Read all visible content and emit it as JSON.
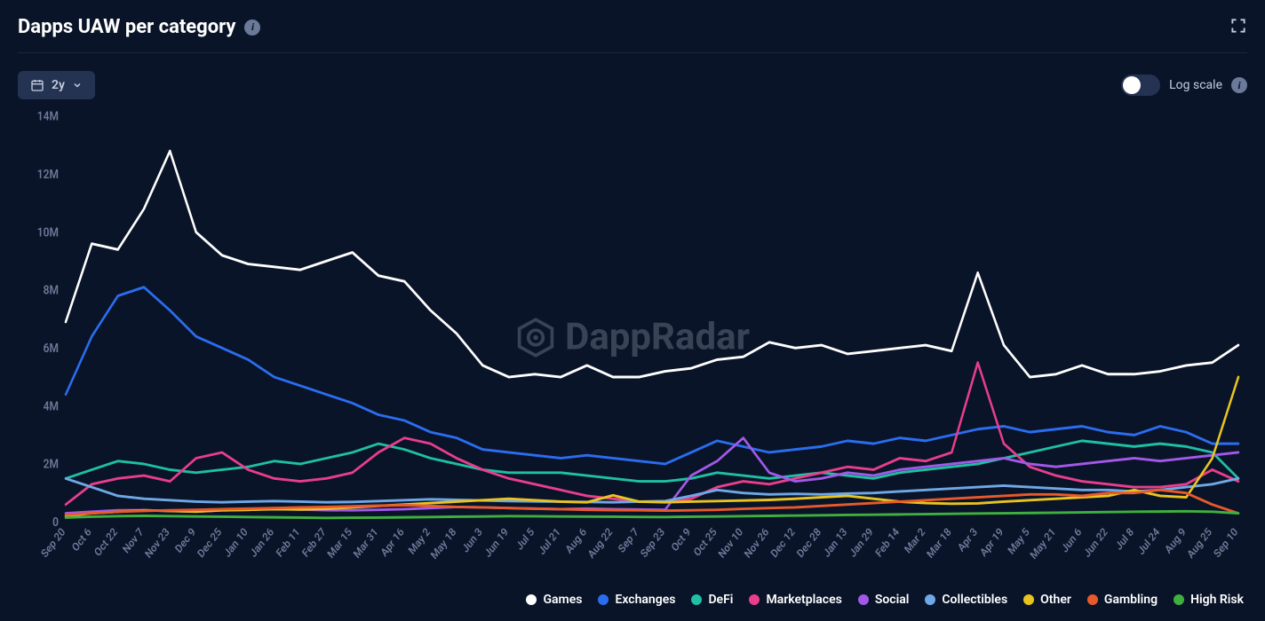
{
  "header": {
    "title": "Dapps UAW per category"
  },
  "controls": {
    "range_label": "2y",
    "scale_label": "Log scale"
  },
  "watermark": "DappRadar",
  "chart": {
    "type": "line",
    "background_color": "#0a1428",
    "axis_text_color": "#6b7a99",
    "line_width": 2.5,
    "y": {
      "min": 0,
      "max": 14000000,
      "ticks": [
        0,
        2000000,
        4000000,
        6000000,
        8000000,
        10000000,
        12000000,
        14000000
      ],
      "tick_labels": [
        "0",
        "2M",
        "4M",
        "6M",
        "8M",
        "10M",
        "12M",
        "14M"
      ]
    },
    "x": {
      "labels": [
        "Sep 20",
        "Oct 6",
        "Oct 22",
        "Nov 7",
        "Nov 23",
        "Dec 9",
        "Dec 25",
        "Jan 10",
        "Jan 26",
        "Feb 11",
        "Feb 27",
        "Mar 15",
        "Mar 31",
        "Apr 16",
        "May 2",
        "May 18",
        "Jun 3",
        "Jun 19",
        "Jul 5",
        "Jul 21",
        "Aug 6",
        "Aug 22",
        "Sep 7",
        "Sep 23",
        "Oct 9",
        "Oct 25",
        "Nov 10",
        "Nov 26",
        "Dec 12",
        "Dec 28",
        "Jan 13",
        "Jan 29",
        "Feb 14",
        "Mar 2",
        "Mar 18",
        "Apr 3",
        "Apr 19",
        "May 5",
        "May 21",
        "Jun 6",
        "Jun 22",
        "Jul 8",
        "Jul 24",
        "Aug 9",
        "Aug 25",
        "Sep 10"
      ]
    },
    "series": [
      {
        "name": "Games",
        "color": "#ffffff",
        "values": [
          6900000,
          9600000,
          9400000,
          10800000,
          12800000,
          10000000,
          9200000,
          8900000,
          8800000,
          8700000,
          9000000,
          9300000,
          8500000,
          8300000,
          7300000,
          6500000,
          5400000,
          5000000,
          5100000,
          5000000,
          5400000,
          5000000,
          5000000,
          5200000,
          5300000,
          5600000,
          5700000,
          6200000,
          6000000,
          6100000,
          5800000,
          5900000,
          6000000,
          6100000,
          5900000,
          8600000,
          6100000,
          5000000,
          5100000,
          5400000,
          5100000,
          5100000,
          5200000,
          5400000,
          5500000,
          6100000
        ]
      },
      {
        "name": "Exchanges",
        "color": "#2b6df0",
        "values": [
          4400000,
          6400000,
          7800000,
          8100000,
          7300000,
          6400000,
          6000000,
          5600000,
          5000000,
          4700000,
          4400000,
          4100000,
          3700000,
          3500000,
          3100000,
          2900000,
          2500000,
          2400000,
          2300000,
          2200000,
          2300000,
          2200000,
          2100000,
          2000000,
          2400000,
          2800000,
          2600000,
          2400000,
          2500000,
          2600000,
          2800000,
          2700000,
          2900000,
          2800000,
          3000000,
          3200000,
          3300000,
          3100000,
          3200000,
          3300000,
          3100000,
          3000000,
          3300000,
          3100000,
          2700000,
          2700000
        ]
      },
      {
        "name": "DeFi",
        "color": "#1fbfa4",
        "values": [
          1500000,
          1800000,
          2100000,
          2000000,
          1800000,
          1700000,
          1800000,
          1900000,
          2100000,
          2000000,
          2200000,
          2400000,
          2700000,
          2500000,
          2200000,
          2000000,
          1800000,
          1700000,
          1700000,
          1700000,
          1600000,
          1500000,
          1400000,
          1400000,
          1500000,
          1700000,
          1600000,
          1500000,
          1600000,
          1700000,
          1600000,
          1500000,
          1700000,
          1800000,
          1900000,
          2000000,
          2200000,
          2400000,
          2600000,
          2800000,
          2700000,
          2600000,
          2700000,
          2600000,
          2400000,
          1500000
        ]
      },
      {
        "name": "Marketplaces",
        "color": "#e83e8c",
        "values": [
          600000,
          1300000,
          1500000,
          1600000,
          1400000,
          2200000,
          2400000,
          1800000,
          1500000,
          1400000,
          1500000,
          1700000,
          2400000,
          2900000,
          2700000,
          2200000,
          1800000,
          1500000,
          1300000,
          1100000,
          900000,
          800000,
          700000,
          700000,
          800000,
          1200000,
          1400000,
          1300000,
          1500000,
          1700000,
          1900000,
          1800000,
          2200000,
          2100000,
          2400000,
          5500000,
          2700000,
          1900000,
          1600000,
          1400000,
          1300000,
          1200000,
          1200000,
          1300000,
          1800000,
          1400000
        ]
      },
      {
        "name": "Social",
        "color": "#a259e8",
        "values": [
          300000,
          350000,
          400000,
          400000,
          380000,
          360000,
          400000,
          420000,
          450000,
          430000,
          410000,
          400000,
          420000,
          440000,
          480000,
          520000,
          500000,
          480000,
          460000,
          440000,
          460000,
          440000,
          430000,
          420000,
          1600000,
          2100000,
          2900000,
          1700000,
          1400000,
          1500000,
          1700000,
          1600000,
          1800000,
          1900000,
          2000000,
          2100000,
          2200000,
          2000000,
          1900000,
          2000000,
          2100000,
          2200000,
          2100000,
          2200000,
          2300000,
          2400000
        ]
      },
      {
        "name": "Collectibles",
        "color": "#6fa8e6",
        "values": [
          1500000,
          1200000,
          900000,
          800000,
          750000,
          700000,
          680000,
          700000,
          720000,
          700000,
          680000,
          690000,
          720000,
          750000,
          780000,
          760000,
          740000,
          720000,
          710000,
          700000,
          690000,
          680000,
          700000,
          720000,
          900000,
          1100000,
          1000000,
          950000,
          970000,
          950000,
          980000,
          1000000,
          1050000,
          1100000,
          1150000,
          1200000,
          1250000,
          1200000,
          1150000,
          1100000,
          1100000,
          1050000,
          1100000,
          1200000,
          1300000,
          1500000
        ]
      },
      {
        "name": "Other",
        "color": "#e8c41f",
        "values": [
          200000,
          300000,
          350000,
          400000,
          380000,
          360000,
          400000,
          420000,
          440000,
          430000,
          450000,
          500000,
          550000,
          600000,
          650000,
          700000,
          750000,
          800000,
          750000,
          700000,
          680000,
          920000,
          700000,
          680000,
          700000,
          720000,
          740000,
          760000,
          800000,
          850000,
          900000,
          800000,
          700000,
          650000,
          630000,
          640000,
          700000,
          750000,
          800000,
          850000,
          900000,
          1100000,
          900000,
          850000,
          2200000,
          5000000
        ]
      },
      {
        "name": "Gambling",
        "color": "#e85a2b",
        "values": [
          250000,
          300000,
          350000,
          380000,
          400000,
          420000,
          440000,
          460000,
          480000,
          500000,
          520000,
          540000,
          560000,
          580000,
          550000,
          520000,
          500000,
          480000,
          460000,
          440000,
          420000,
          410000,
          400000,
          390000,
          400000,
          420000,
          450000,
          480000,
          500000,
          550000,
          600000,
          650000,
          700000,
          750000,
          800000,
          850000,
          900000,
          950000,
          950000,
          900000,
          1000000,
          1000000,
          1100000,
          1000000,
          600000,
          300000
        ]
      },
      {
        "name": "High Risk",
        "color": "#3fb03f",
        "values": [
          150000,
          180000,
          200000,
          210000,
          200000,
          190000,
          180000,
          170000,
          160000,
          150000,
          140000,
          145000,
          150000,
          160000,
          170000,
          180000,
          190000,
          200000,
          195000,
          190000,
          185000,
          180000,
          175000,
          170000,
          180000,
          190000,
          200000,
          210000,
          220000,
          230000,
          240000,
          250000,
          260000,
          270000,
          280000,
          290000,
          300000,
          310000,
          320000,
          330000,
          340000,
          350000,
          360000,
          370000,
          350000,
          300000
        ]
      }
    ]
  }
}
